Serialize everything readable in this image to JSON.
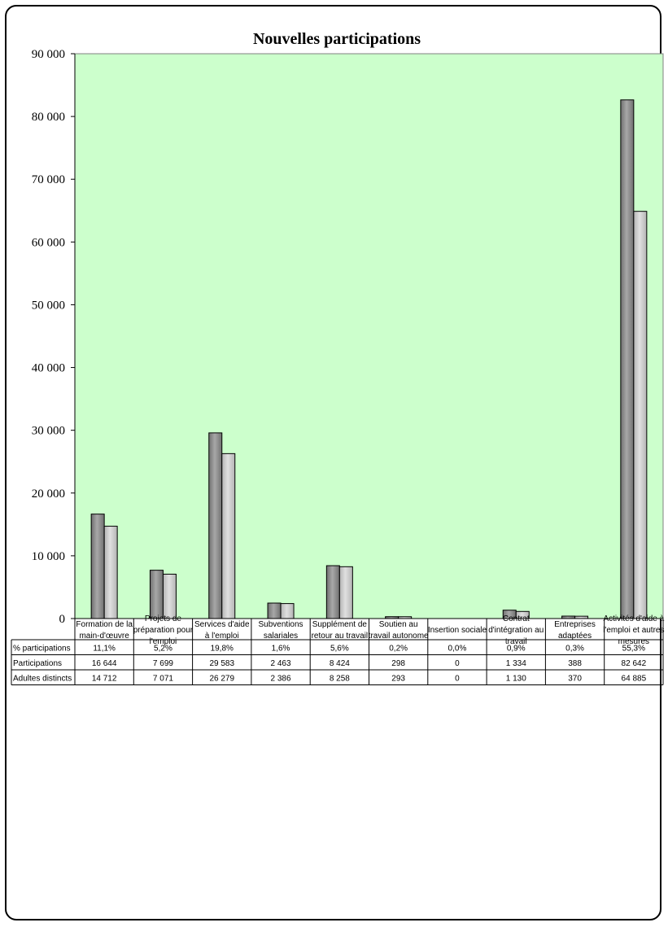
{
  "chart_data": {
    "type": "bar",
    "title": "Nouvelles participations",
    "ylim": [
      0,
      90000
    ],
    "yticks": [
      "0",
      "10 000",
      "20 000",
      "30 000",
      "40 000",
      "50 000",
      "60 000",
      "70 000",
      "80 000",
      "90 000"
    ],
    "categories": [
      [
        "Formation de la",
        "main-d'œuvre"
      ],
      [
        "Projets de",
        "préparation pour",
        "l'emploi"
      ],
      [
        "Services d'aide",
        "à l'emploi"
      ],
      [
        "Subventions",
        "salariales"
      ],
      [
        "Supplément de",
        "retour au travail"
      ],
      [
        "Soutien au",
        "travail autonome"
      ],
      [
        "Insertion sociale"
      ],
      [
        "Contrat",
        "d'intégration au",
        "travail"
      ],
      [
        "Entreprises",
        "adaptées"
      ],
      [
        "Activités d'aide à",
        "l'emploi et autres",
        "mesures"
      ]
    ],
    "series": [
      {
        "name": "Participations",
        "values": [
          16644,
          7699,
          29583,
          2463,
          8424,
          298,
          0,
          1334,
          388,
          82642
        ],
        "color": "#707070"
      },
      {
        "name": "Adultes distincts",
        "values": [
          14712,
          7071,
          26279,
          2386,
          8258,
          293,
          0,
          1130,
          370,
          64885
        ],
        "color": "#b4b4b4"
      }
    ],
    "table": {
      "rows": [
        {
          "label": "% participations",
          "cells": [
            "11,1%",
            "5,2%",
            "19,8%",
            "1,6%",
            "5,6%",
            "0,2%",
            "0,0%",
            "0,9%",
            "0,3%",
            "55,3%"
          ]
        },
        {
          "label": "Participations",
          "cells": [
            "16 644",
            "7 699",
            "29 583",
            "2 463",
            "8 424",
            "298",
            "0",
            "1 334",
            "388",
            "82 642"
          ]
        },
        {
          "label": "Adultes distincts",
          "cells": [
            "14 712",
            "7 071",
            "26 279",
            "2 386",
            "8 258",
            "293",
            "0",
            "1 130",
            "370",
            "64 885"
          ]
        }
      ]
    },
    "plot_background": "#ccffcc",
    "grid": false
  }
}
